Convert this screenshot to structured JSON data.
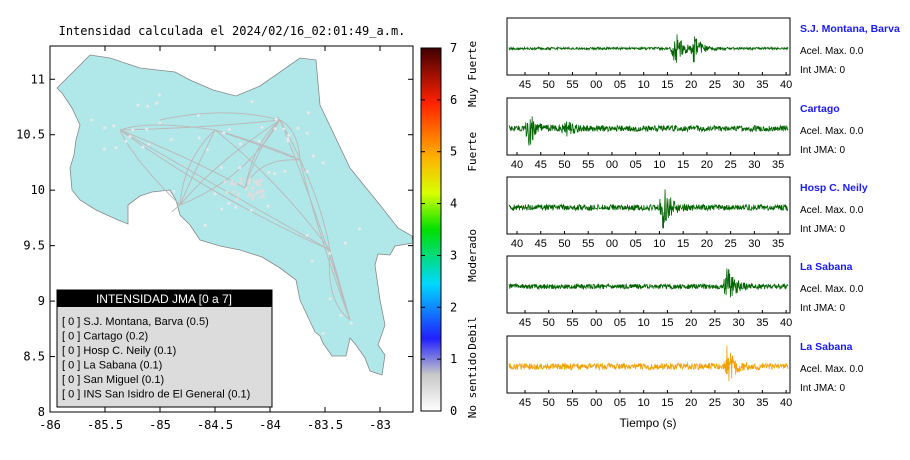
{
  "map": {
    "title": "Intensidad calculada el 2024/02/16_02:01:49_a.m.",
    "x_ticks": [
      "-86",
      "-85.5",
      "-85",
      "-84.5",
      "-84",
      "-83.5",
      "-83"
    ],
    "y_ticks": [
      "11",
      "10.5",
      "10",
      "9.5",
      "9",
      "8.5",
      "8"
    ],
    "xlim": [
      -86,
      -82.7
    ],
    "ylim": [
      8,
      11.3
    ],
    "land_color": "#b0e8ea",
    "road_color": "#bbbbbb"
  },
  "legend": {
    "title": "INTENSIDAD JMA [0 a 7]",
    "items": [
      "[ 0 ]  S.J. Montana, Barva (0.5)",
      "[ 0 ]  Cartago (0.2)",
      "[ 0 ]  Hosp C. Neily (0.1)",
      "[ 0 ]  La Sabana (0.1)",
      "[ 0 ]  San Miguel (0.1)",
      "[ 0 ]  INS San Isidro de El General (0.1)"
    ]
  },
  "colorbar": {
    "ticks": [
      "0",
      "1",
      "2",
      "3",
      "4",
      "5",
      "6",
      "7"
    ],
    "labels": [
      "No sentido",
      "Debil",
      "Moderado",
      "Fuerte",
      "Muy Fuerte"
    ]
  },
  "waveforms": {
    "xlabel": "Tiempo (s)",
    "panels": [
      {
        "name": "S.J. Montana, Barva",
        "acel": "Acel. Max. 0.0",
        "int": "Int JMA: 0",
        "color": "#006400",
        "ticks": [
          "45",
          "50",
          "55",
          "00",
          "05",
          "10",
          "15",
          "20",
          "25",
          "30",
          "35",
          "40"
        ],
        "events": [
          [
            0.59,
            0.9
          ],
          [
            0.66,
            0.55
          ]
        ],
        "noise": 0.05
      },
      {
        "name": "Cartago",
        "acel": "Acel. Max. 0.0",
        "int": "Int JMA: 0",
        "color": "#006400",
        "ticks": [
          "40",
          "45",
          "50",
          "55",
          "00",
          "05",
          "10",
          "15",
          "20",
          "25",
          "30",
          "35"
        ],
        "events": [
          [
            0.07,
            0.75
          ],
          [
            0.2,
            0.3
          ]
        ],
        "noise": 0.12
      },
      {
        "name": "Hosp C. Neily",
        "acel": "Acel. Max. 0.0",
        "int": "Int JMA: 0",
        "color": "#006400",
        "ticks": [
          "40",
          "45",
          "50",
          "55",
          "00",
          "05",
          "10",
          "15",
          "20",
          "25",
          "30",
          "35"
        ],
        "events": [
          [
            0.55,
            0.95
          ]
        ],
        "noise": 0.12
      },
      {
        "name": "La Sabana",
        "acel": "Acel. Max. 0.0",
        "int": "Int JMA: 0",
        "color": "#006400",
        "ticks": [
          "45",
          "50",
          "55",
          "00",
          "05",
          "10",
          "15",
          "20",
          "25",
          "30",
          "35",
          "40"
        ],
        "events": [
          [
            0.78,
            0.85
          ]
        ],
        "noise": 0.1
      },
      {
        "name": "La Sabana",
        "acel": "Acel. Max. 0.0",
        "int": "Int JMA: 0",
        "color": "#f0a000",
        "ticks": [
          "45",
          "50",
          "55",
          "00",
          "05",
          "10",
          "15",
          "20",
          "25",
          "30",
          "35",
          "40"
        ],
        "events": [
          [
            0.78,
            0.85
          ]
        ],
        "noise": 0.13
      }
    ]
  }
}
